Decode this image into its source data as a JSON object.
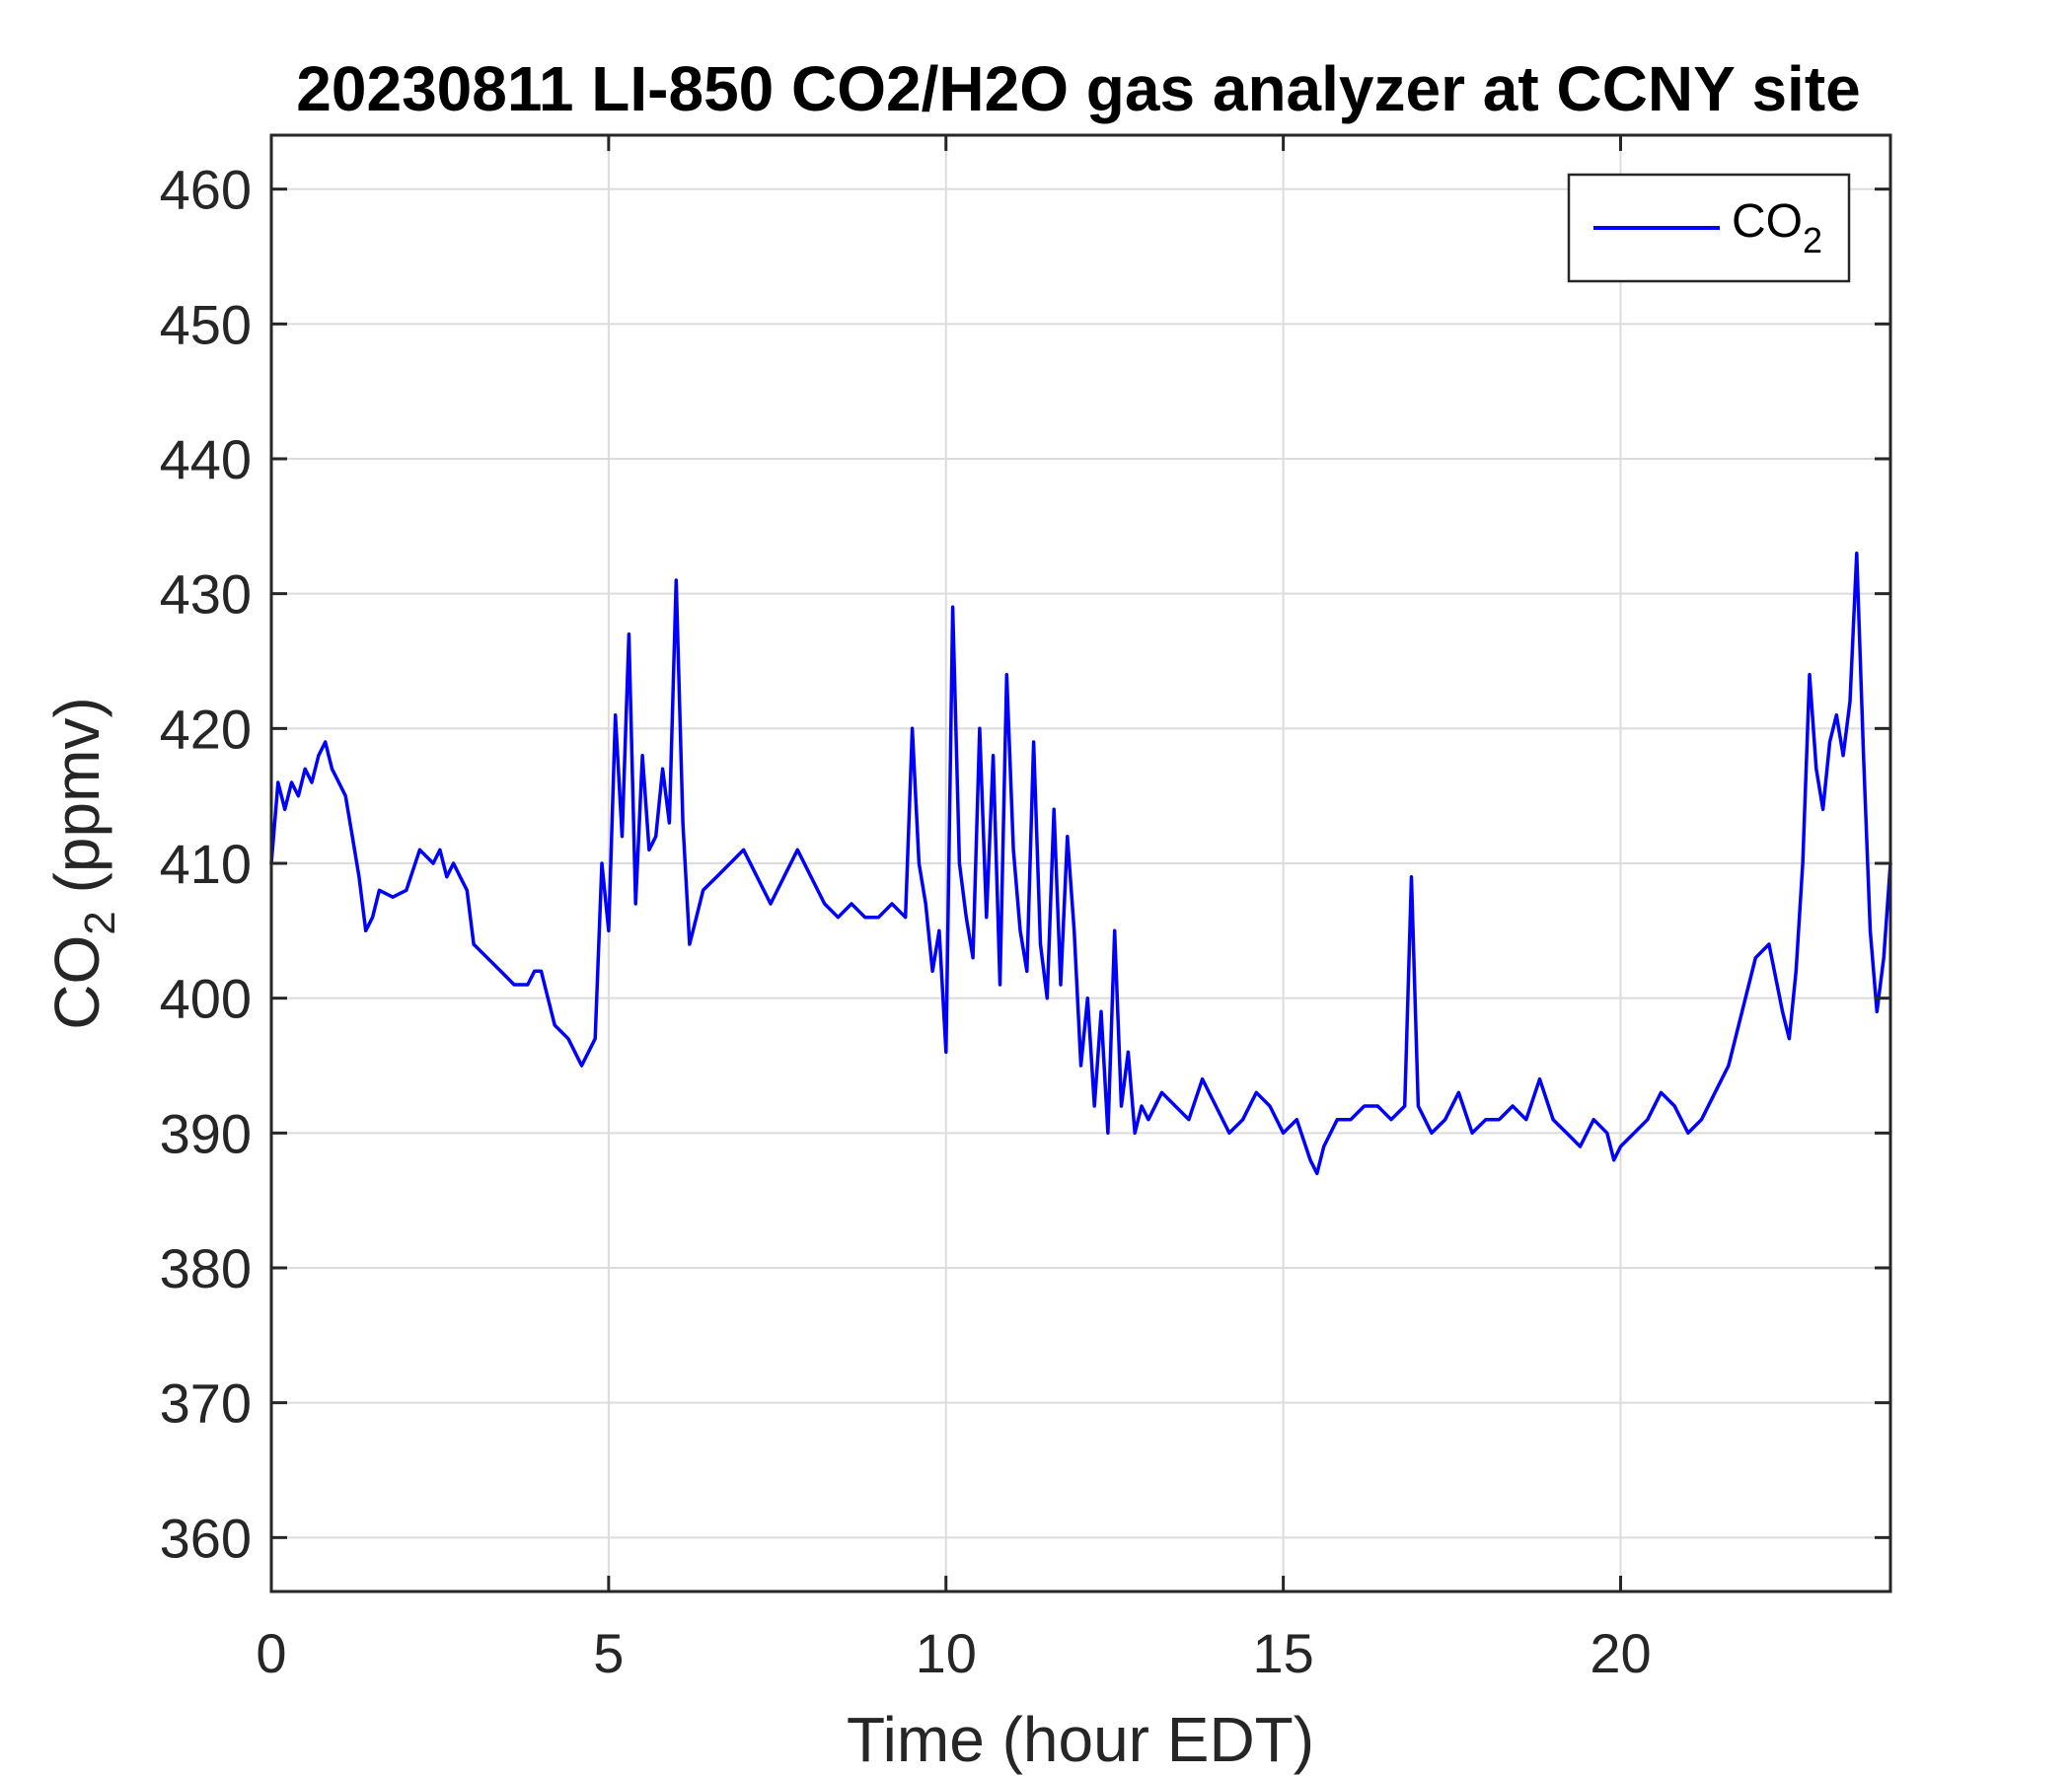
{
  "chart_data": {
    "type": "line",
    "title": "20230811 LI-850 CO2/H2O gas analyzer at CCNY site",
    "xlabel": "Time (hour EDT)",
    "ylabel": {
      "main": "CO",
      "sub": "2",
      "suffix": " (ppmv)"
    },
    "xlim": [
      0,
      24
    ],
    "ylim": [
      356,
      464
    ],
    "xticks": [
      0,
      5,
      10,
      15,
      20
    ],
    "yticks": [
      360,
      370,
      380,
      390,
      400,
      410,
      420,
      430,
      440,
      450,
      460
    ],
    "grid": true,
    "legend": {
      "placement": "top-right"
    },
    "series": [
      {
        "name": {
          "main": "CO",
          "sub": "2"
        },
        "color": "#0000ff",
        "x": [
          0.0,
          0.1,
          0.2,
          0.3,
          0.4,
          0.5,
          0.6,
          0.7,
          0.8,
          0.9,
          1.0,
          1.1,
          1.2,
          1.3,
          1.4,
          1.5,
          1.6,
          1.8,
          2.0,
          2.2,
          2.4,
          2.5,
          2.6,
          2.7,
          2.8,
          2.9,
          3.0,
          3.2,
          3.4,
          3.6,
          3.8,
          3.9,
          4.0,
          4.2,
          4.4,
          4.5,
          4.6,
          4.7,
          4.8,
          4.9,
          5.0,
          5.1,
          5.2,
          5.3,
          5.4,
          5.5,
          5.6,
          5.7,
          5.8,
          5.9,
          6.0,
          6.1,
          6.2,
          6.3,
          6.4,
          6.6,
          6.8,
          7.0,
          7.2,
          7.4,
          7.6,
          7.8,
          8.0,
          8.2,
          8.4,
          8.6,
          8.8,
          9.0,
          9.2,
          9.4,
          9.5,
          9.6,
          9.7,
          9.8,
          9.9,
          10.0,
          10.1,
          10.2,
          10.3,
          10.4,
          10.5,
          10.6,
          10.7,
          10.8,
          10.9,
          11.0,
          11.1,
          11.2,
          11.3,
          11.4,
          11.5,
          11.6,
          11.7,
          11.8,
          11.9,
          12.0,
          12.1,
          12.2,
          12.3,
          12.4,
          12.5,
          12.6,
          12.7,
          12.8,
          12.9,
          13.0,
          13.2,
          13.4,
          13.6,
          13.8,
          14.0,
          14.2,
          14.4,
          14.6,
          14.8,
          15.0,
          15.2,
          15.4,
          15.5,
          15.6,
          15.8,
          16.0,
          16.2,
          16.4,
          16.6,
          16.8,
          16.9,
          17.0,
          17.2,
          17.4,
          17.6,
          17.8,
          18.0,
          18.2,
          18.4,
          18.6,
          18.8,
          19.0,
          19.2,
          19.4,
          19.6,
          19.8,
          19.9,
          20.0,
          20.2,
          20.4,
          20.6,
          20.8,
          21.0,
          21.2,
          21.4,
          21.6,
          21.8,
          22.0,
          22.2,
          22.4,
          22.5,
          22.6,
          22.7,
          22.8,
          22.9,
          23.0,
          23.1,
          23.2,
          23.3,
          23.4,
          23.5,
          23.6,
          23.7,
          23.8,
          23.9,
          24.0
        ],
        "y": [
          410,
          416,
          414,
          416,
          415,
          417,
          416,
          418,
          419,
          417,
          416,
          415,
          412,
          409,
          405,
          406,
          408,
          407.5,
          408,
          411,
          410,
          411,
          409,
          410,
          409,
          408,
          404,
          403,
          402,
          401,
          401,
          402,
          402,
          398,
          397,
          396,
          395,
          396,
          397,
          410,
          405,
          421,
          412,
          427,
          407,
          418,
          411,
          412,
          417,
          413,
          431,
          413,
          404,
          406,
          408,
          409,
          410,
          411,
          409,
          407,
          409,
          411,
          409,
          407,
          406,
          407,
          406,
          406,
          407,
          406,
          420,
          410,
          407,
          402,
          405,
          396,
          429,
          410,
          406,
          403,
          420,
          406,
          418,
          401,
          424,
          411,
          405,
          402,
          419,
          404,
          400,
          414,
          401,
          412,
          405,
          395,
          400,
          392,
          399,
          390,
          405,
          392,
          396,
          390,
          392,
          391,
          393,
          392,
          391,
          394,
          392,
          390,
          391,
          393,
          392,
          390,
          391,
          388,
          387,
          389,
          391,
          391,
          392,
          392,
          391,
          392,
          409,
          392,
          390,
          391,
          393,
          390,
          391,
          391,
          392,
          391,
          394,
          391,
          390,
          389,
          391,
          390,
          388,
          389,
          390,
          391,
          393,
          392,
          390,
          391,
          393,
          395,
          399,
          403,
          404,
          399,
          397,
          402,
          410,
          424,
          417,
          414,
          419,
          421,
          418,
          422,
          433,
          418,
          405,
          399,
          403,
          410
        ]
      }
    ]
  }
}
